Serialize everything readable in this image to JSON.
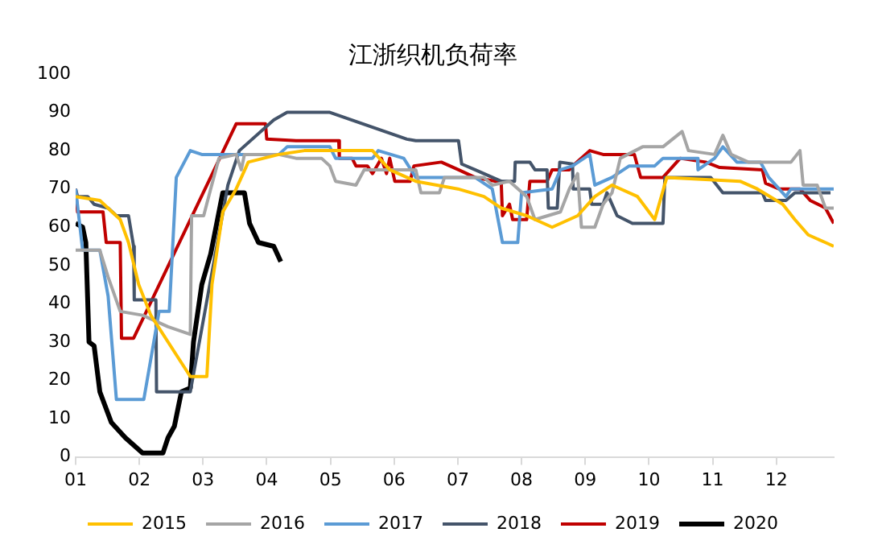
{
  "chart_data": {
    "type": "line",
    "title": "江浙织机负荷率",
    "xlim": [
      1,
      12.9
    ],
    "xticks": [
      {
        "value": 1,
        "label": "01"
      },
      {
        "value": 2,
        "label": "02"
      },
      {
        "value": 3,
        "label": "03"
      },
      {
        "value": 4,
        "label": "04"
      },
      {
        "value": 5,
        "label": "05"
      },
      {
        "value": 6,
        "label": "06"
      },
      {
        "value": 7,
        "label": "07"
      },
      {
        "value": 8,
        "label": "08"
      },
      {
        "value": 9,
        "label": "09"
      },
      {
        "value": 10,
        "label": "10"
      },
      {
        "value": 11,
        "label": "11"
      },
      {
        "value": 12,
        "label": "12"
      }
    ],
    "ylim": [
      0,
      100
    ],
    "yticks": [
      0,
      10,
      20,
      30,
      40,
      50,
      60,
      70,
      80,
      90,
      100
    ],
    "grid": false,
    "legend": "bottom",
    "marker": "none",
    "line_style": "solid",
    "series": [
      {
        "name": "2015",
        "color": "#ffc000",
        "x": [
          1.0,
          1.38,
          1.7,
          1.83,
          1.99,
          2.18,
          2.8,
          3.06,
          3.14,
          3.31,
          3.52,
          3.71,
          4.19,
          4.59,
          5.66,
          5.93,
          6.34,
          7.0,
          7.41,
          7.68,
          8.08,
          8.48,
          8.88,
          9.15,
          9.42,
          9.82,
          10.09,
          10.28,
          11.43,
          11.7,
          12.1,
          12.29,
          12.5,
          12.77,
          12.9
        ],
        "values": [
          68,
          67,
          62,
          56,
          45,
          37,
          21,
          21,
          45,
          64,
          70,
          77,
          79,
          80,
          80,
          75,
          72,
          70,
          68,
          65,
          63,
          60,
          63,
          68,
          71,
          68,
          62,
          73,
          72,
          70,
          66,
          62,
          58,
          56,
          55
        ]
      },
      {
        "name": "2016",
        "color": "#a5a5a5",
        "x": [
          1.0,
          1.38,
          1.51,
          1.7,
          2.05,
          2.45,
          2.8,
          2.82,
          3.01,
          3.12,
          3.25,
          3.52,
          3.6,
          3.65,
          4.19,
          4.46,
          4.86,
          4.99,
          5.08,
          5.4,
          5.53,
          6.34,
          6.42,
          6.71,
          6.79,
          7.41,
          7.54,
          7.81,
          8.08,
          8.21,
          8.61,
          8.75,
          8.88,
          8.94,
          9.15,
          9.28,
          9.42,
          9.55,
          9.9,
          10.22,
          10.52,
          10.62,
          11.03,
          11.16,
          11.29,
          11.56,
          12.23,
          12.37,
          12.42,
          12.64,
          12.77,
          12.9
        ],
        "values": [
          54,
          54,
          47,
          38,
          37,
          34,
          32,
          63,
          63,
          70,
          78,
          79,
          75,
          79,
          79,
          78,
          78,
          76,
          72,
          71,
          75,
          75,
          69,
          69,
          73,
          73,
          71,
          72,
          68,
          62,
          64,
          70,
          74,
          60,
          60,
          66,
          69,
          78,
          81,
          81,
          85,
          80,
          79,
          84,
          79,
          77,
          77,
          80,
          71,
          71,
          65,
          65
        ]
      },
      {
        "name": "2017",
        "color": "#5b9bd5",
        "x": [
          1.0,
          1.11,
          1.38,
          1.51,
          1.64,
          2.07,
          2.31,
          2.47,
          2.58,
          2.8,
          2.98,
          4.19,
          4.32,
          4.99,
          5.08,
          5.66,
          5.75,
          6.15,
          6.34,
          7.27,
          7.54,
          7.7,
          7.94,
          8.0,
          8.48,
          8.61,
          8.8,
          9.07,
          9.15,
          9.42,
          9.69,
          10.09,
          10.22,
          10.76,
          10.77,
          11.03,
          11.16,
          11.38,
          11.75,
          11.88,
          12.15,
          12.23,
          12.9
        ],
        "values": [
          70,
          54,
          54,
          42,
          15,
          15,
          38,
          38,
          73,
          80,
          79,
          79,
          81,
          81,
          78,
          78,
          80,
          78,
          73,
          73,
          70,
          56,
          56,
          69,
          70,
          75,
          76,
          79,
          71,
          73,
          76,
          76,
          78,
          78,
          75,
          78,
          81,
          77,
          77,
          73,
          68,
          70,
          70
        ]
      },
      {
        "name": "2018",
        "color": "#44546a",
        "x": [
          1.0,
          1.03,
          1.19,
          1.29,
          1.51,
          1.64,
          1.83,
          1.91,
          1.92,
          2.26,
          2.27,
          2.8,
          3.39,
          3.57,
          4.11,
          4.32,
          4.73,
          4.99,
          6.2,
          6.34,
          7.01,
          7.06,
          7.27,
          7.68,
          7.89,
          7.9,
          8.13,
          8.21,
          8.4,
          8.42,
          8.56,
          8.6,
          8.8,
          8.81,
          9.07,
          9.1,
          9.28,
          9.34,
          9.5,
          9.74,
          10.22,
          10.25,
          10.97,
          11.16,
          11.78,
          11.83,
          12.15,
          12.29,
          12.85
        ],
        "values": [
          70,
          68,
          68,
          66,
          65,
          63,
          63,
          55,
          41,
          41,
          17,
          17,
          71,
          80,
          88,
          90,
          90,
          90,
          83,
          82.6,
          82.6,
          76.5,
          75,
          72,
          72,
          77,
          77,
          75,
          75,
          65,
          65,
          77,
          76.5,
          70,
          70,
          66,
          66,
          69,
          63,
          61,
          61,
          73,
          73,
          69,
          69,
          67,
          67,
          69,
          69
        ]
      },
      {
        "name": "2019",
        "color": "#c00000",
        "x": [
          1.0,
          1.03,
          1.43,
          1.48,
          1.7,
          1.72,
          1.91,
          3.52,
          3.98,
          4.0,
          4.46,
          5.13,
          5.14,
          5.34,
          5.4,
          5.58,
          5.66,
          5.8,
          5.88,
          5.93,
          6.01,
          6.25,
          6.31,
          6.74,
          7.01,
          7.27,
          7.6,
          7.68,
          7.7,
          7.81,
          7.86,
          8.08,
          8.13,
          8.4,
          8.48,
          8.75,
          8.8,
          9.07,
          9.28,
          9.77,
          9.87,
          10.22,
          10.49,
          10.89,
          11.11,
          11.78,
          11.83,
          12.04,
          12.37,
          12.53,
          12.77,
          12.9
        ],
        "values": [
          70,
          64,
          64,
          56,
          56,
          31,
          31,
          87,
          87,
          83,
          82.6,
          82.6,
          78,
          78,
          76,
          76,
          74,
          78,
          74,
          78,
          72,
          72,
          76,
          77,
          75,
          73,
          72,
          72,
          63,
          66,
          62,
          62,
          72,
          72,
          75,
          75,
          76,
          80,
          79,
          79,
          73,
          73,
          78,
          77,
          75.6,
          75,
          71.5,
          70,
          70,
          67,
          65,
          61
        ]
      },
      {
        "name": "2020",
        "color": "#000000",
        "x": [
          1.0,
          1.11,
          1.16,
          1.21,
          1.29,
          1.38,
          1.56,
          1.78,
          2.05,
          2.37,
          2.45,
          2.55,
          2.66,
          2.8,
          2.85,
          2.98,
          3.12,
          3.25,
          3.31,
          3.65,
          3.73,
          3.87,
          4.11,
          4.22
        ],
        "values": [
          61,
          60,
          56,
          30,
          29,
          17,
          9,
          5,
          1,
          1,
          5,
          8,
          17,
          18,
          30,
          45,
          53,
          64,
          69,
          69,
          61,
          56,
          55,
          51
        ]
      }
    ]
  }
}
